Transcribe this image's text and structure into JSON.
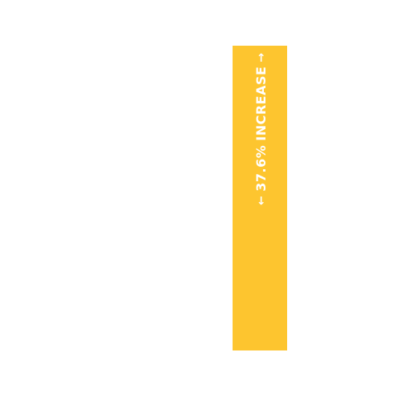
{
  "chart_data": {
    "type": "bar",
    "categories": [
      ""
    ],
    "values": [
      37.6
    ],
    "ylim": [
      0,
      37.6
    ],
    "grid": false,
    "colors": {
      "bar": "#FDC52F",
      "label": "#FFFFFF",
      "background": "#FFFFFF"
    },
    "annotation": {
      "value_text": "37.6%",
      "word": "INCREASE",
      "left_icon": "arrow-left-icon",
      "right_icon": "arrow-right-icon"
    }
  }
}
